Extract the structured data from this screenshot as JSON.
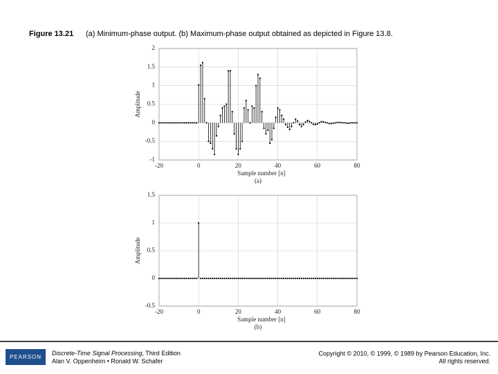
{
  "caption": {
    "label": "Figure 13.21",
    "text": "(a) Minimum-phase output. (b) Maximum-phase output obtained as depicted in Figure 13.8."
  },
  "footer": {
    "logo": "PEARSON",
    "book_title": "Discrete-Time Signal Processing",
    "edition": ", Third Edition",
    "authors": "Alan V. Oppenheim • Ronald W. Schafer",
    "copyright": "Copyright © 2010, © 1999, © 1989 by Pearson Education, Inc.",
    "rights": "All rights reserved."
  },
  "chart_data": [
    {
      "type": "stem",
      "subtitle": "(a)",
      "x_label": "Sample number [n]",
      "y_label": "Amplitude",
      "color": "#000000",
      "grid": true,
      "xlim": [
        -20,
        80
      ],
      "xticks": [
        -20,
        0,
        20,
        40,
        60,
        80
      ],
      "ylim": [
        -1,
        2
      ],
      "yticks": [
        -1,
        -0.5,
        0,
        0.5,
        1,
        1.5,
        2
      ],
      "x": [
        -20,
        -19,
        -18,
        -17,
        -16,
        -15,
        -14,
        -13,
        -12,
        -11,
        -10,
        -9,
        -8,
        -7,
        -6,
        -5,
        -4,
        -3,
        -2,
        -1,
        0,
        1,
        2,
        3,
        4,
        5,
        6,
        7,
        8,
        9,
        10,
        11,
        12,
        13,
        14,
        15,
        16,
        17,
        18,
        19,
        20,
        21,
        22,
        23,
        24,
        25,
        26,
        27,
        28,
        29,
        30,
        31,
        32,
        33,
        34,
        35,
        36,
        37,
        38,
        39,
        40,
        41,
        42,
        43,
        44,
        45,
        46,
        47,
        48,
        49,
        50,
        51,
        52,
        53,
        54,
        55,
        56,
        57,
        58,
        59,
        60,
        61,
        62,
        63,
        64,
        65,
        66,
        67,
        68,
        69,
        70,
        71,
        72,
        73,
        74,
        75,
        76,
        77,
        78,
        79,
        80
      ],
      "values": [
        0,
        0,
        0,
        0,
        0,
        0,
        0,
        0,
        0,
        0,
        0,
        0,
        0,
        0,
        0,
        0,
        0,
        0,
        0,
        0,
        1.02,
        1.55,
        1.62,
        0.65,
        0,
        -0.5,
        -0.55,
        -0.7,
        -0.85,
        -0.35,
        -0.1,
        0.2,
        0.4,
        0.45,
        0.5,
        1.4,
        1.4,
        0.3,
        -0.3,
        -0.7,
        -0.85,
        -0.7,
        -0.5,
        0.4,
        0.6,
        0.35,
        0,
        0.45,
        0.4,
        1,
        1.3,
        1.2,
        0.3,
        -0.15,
        -0.3,
        -0.2,
        -0.55,
        -0.45,
        -0.15,
        0.15,
        0.4,
        0.35,
        0.2,
        0.1,
        -0.05,
        -0.12,
        -0.18,
        -0.1,
        0,
        0.1,
        0.05,
        -0.05,
        -0.1,
        -0.05,
        0.02,
        0.06,
        0.04,
        0,
        -0.04,
        -0.05,
        -0.03,
        0,
        0.03,
        0.03,
        0.01,
        0,
        -0.02,
        -0.02,
        -0.01,
        0,
        0.01,
        0.01,
        0.01,
        0,
        0,
        -0.01,
        -0.01,
        0,
        0,
        0,
        0
      ]
    },
    {
      "type": "stem",
      "subtitle": "(b)",
      "x_label": "Sample number [n]",
      "y_label": "Amplitude",
      "color": "#000000",
      "grid": true,
      "xlim": [
        -20,
        80
      ],
      "xticks": [
        -20,
        0,
        20,
        40,
        60,
        80
      ],
      "ylim": [
        -0.5,
        1.5
      ],
      "yticks": [
        -0.5,
        0,
        0.5,
        1,
        1.5
      ],
      "x": [
        -20,
        -19,
        -18,
        -17,
        -16,
        -15,
        -14,
        -13,
        -12,
        -11,
        -10,
        -9,
        -8,
        -7,
        -6,
        -5,
        -4,
        -3,
        -2,
        -1,
        0,
        1,
        2,
        3,
        4,
        5,
        6,
        7,
        8,
        9,
        10,
        11,
        12,
        13,
        14,
        15,
        16,
        17,
        18,
        19,
        20,
        21,
        22,
        23,
        24,
        25,
        26,
        27,
        28,
        29,
        30,
        31,
        32,
        33,
        34,
        35,
        36,
        37,
        38,
        39,
        40,
        41,
        42,
        43,
        44,
        45,
        46,
        47,
        48,
        49,
        50,
        51,
        52,
        53,
        54,
        55,
        56,
        57,
        58,
        59,
        60,
        61,
        62,
        63,
        64,
        65,
        66,
        67,
        68,
        69,
        70,
        71,
        72,
        73,
        74,
        75,
        76,
        77,
        78,
        79,
        80
      ],
      "values": [
        0,
        0,
        0,
        0,
        0,
        0,
        0,
        0,
        0,
        0,
        0,
        0,
        0,
        0,
        0,
        0,
        0,
        0,
        0,
        0,
        1,
        0,
        0,
        0,
        0,
        0,
        0,
        0,
        0,
        0,
        0,
        0,
        0,
        0,
        0,
        0,
        0,
        0,
        0,
        0,
        0,
        0,
        0,
        0,
        0,
        0,
        0,
        0,
        0,
        0,
        0,
        0,
        0,
        0,
        0,
        0,
        0,
        0,
        0,
        0,
        0,
        0,
        0,
        0,
        0,
        0,
        0,
        0,
        0,
        0,
        0,
        0,
        0,
        0,
        0,
        0,
        0,
        0,
        0,
        0,
        0,
        0,
        0,
        0,
        0,
        0,
        0,
        0,
        0,
        0,
        0,
        0,
        0,
        0,
        0,
        0,
        0,
        0,
        0,
        0,
        0
      ]
    }
  ]
}
